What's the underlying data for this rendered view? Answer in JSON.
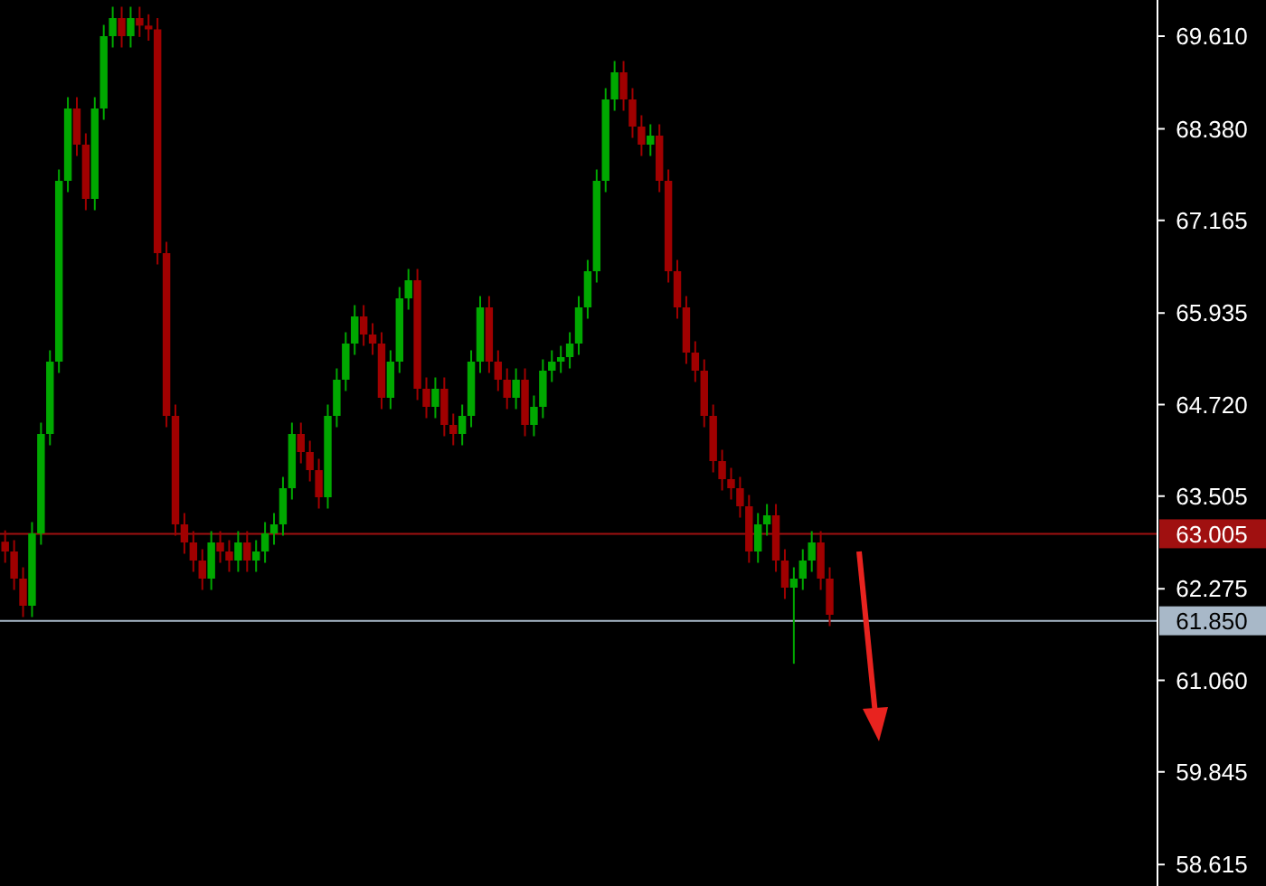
{
  "chart_data": {
    "type": "candlestick",
    "categories": [
      null,
      null,
      null,
      null,
      null,
      null,
      null,
      null,
      null,
      null,
      null,
      null,
      null,
      null,
      null,
      null,
      null,
      null,
      null,
      null,
      null,
      null,
      null,
      null,
      null,
      null,
      null,
      null,
      null,
      null,
      null,
      null,
      null,
      null,
      null,
      null,
      null,
      null,
      null,
      null,
      null,
      null,
      null,
      null,
      null,
      null,
      null,
      null,
      null,
      null,
      null,
      null,
      null,
      null,
      null,
      null,
      null,
      null,
      null,
      null,
      null,
      null,
      null,
      null,
      null,
      null,
      null,
      null,
      null,
      null,
      null,
      null,
      null,
      null,
      null,
      null,
      null,
      null,
      null,
      null,
      null,
      null,
      null,
      null,
      null,
      null,
      null,
      null,
      null,
      null,
      null,
      null,
      null,
      null,
      null,
      null,
      null,
      null,
      null,
      null,
      null,
      null,
      null,
      null,
      null,
      null,
      null,
      null,
      null,
      null,
      null,
      null,
      null,
      null,
      null,
      null,
      null,
      null,
      null,
      null,
      null,
      null,
      null,
      null,
      null,
      null,
      null,
      null,
      null
    ],
    "ohlc": [
      [
        62.9,
        63.05,
        62.62,
        62.77
      ],
      [
        62.77,
        62.92,
        62.26,
        62.41
      ],
      [
        62.41,
        62.56,
        61.9,
        62.05
      ],
      [
        62.05,
        63.16,
        61.9,
        63.01
      ],
      [
        63.01,
        64.48,
        62.86,
        64.33
      ],
      [
        64.33,
        65.44,
        64.18,
        65.29
      ],
      [
        65.29,
        67.84,
        65.14,
        67.69
      ],
      [
        67.69,
        68.8,
        67.54,
        68.65
      ],
      [
        68.65,
        68.8,
        68.02,
        68.17
      ],
      [
        68.17,
        68.32,
        67.3,
        67.45
      ],
      [
        67.45,
        68.8,
        67.3,
        68.65
      ],
      [
        68.65,
        69.76,
        68.5,
        69.61
      ],
      [
        69.61,
        70.0,
        69.46,
        69.85
      ],
      [
        69.85,
        70.0,
        69.46,
        69.61
      ],
      [
        69.61,
        70.0,
        69.46,
        69.85
      ],
      [
        69.85,
        70.0,
        69.6,
        69.75
      ],
      [
        69.75,
        69.9,
        69.55,
        69.7
      ],
      [
        69.7,
        69.85,
        66.58,
        66.73
      ],
      [
        66.73,
        66.88,
        64.42,
        64.57
      ],
      [
        64.57,
        64.72,
        62.98,
        63.13
      ],
      [
        63.13,
        63.28,
        62.74,
        62.89
      ],
      [
        62.89,
        63.04,
        62.5,
        62.65
      ],
      [
        62.65,
        62.8,
        62.26,
        62.41
      ],
      [
        62.41,
        63.04,
        62.26,
        62.89
      ],
      [
        62.89,
        63.04,
        62.62,
        62.77
      ],
      [
        62.77,
        62.92,
        62.5,
        62.65
      ],
      [
        62.65,
        63.04,
        62.5,
        62.89
      ],
      [
        62.89,
        63.04,
        62.5,
        62.65
      ],
      [
        62.65,
        62.92,
        62.5,
        62.77
      ],
      [
        62.77,
        63.16,
        62.62,
        63.01
      ],
      [
        63.01,
        63.28,
        62.86,
        63.13
      ],
      [
        63.13,
        63.76,
        62.98,
        63.61
      ],
      [
        63.61,
        64.48,
        63.46,
        64.33
      ],
      [
        64.33,
        64.48,
        63.94,
        64.09
      ],
      [
        64.09,
        64.24,
        63.7,
        63.85
      ],
      [
        63.85,
        64.0,
        63.34,
        63.49
      ],
      [
        63.49,
        64.72,
        63.34,
        64.57
      ],
      [
        64.57,
        65.2,
        64.42,
        65.05
      ],
      [
        65.05,
        65.68,
        64.9,
        65.53
      ],
      [
        65.53,
        66.04,
        65.38,
        65.89
      ],
      [
        65.89,
        66.04,
        65.5,
        65.65
      ],
      [
        65.65,
        65.8,
        65.38,
        65.53
      ],
      [
        65.53,
        65.68,
        64.66,
        64.81
      ],
      [
        64.81,
        65.44,
        64.66,
        65.29
      ],
      [
        65.29,
        66.28,
        65.14,
        66.13
      ],
      [
        66.13,
        66.52,
        65.98,
        66.37
      ],
      [
        66.37,
        66.52,
        64.78,
        64.93
      ],
      [
        64.93,
        65.08,
        64.54,
        64.69
      ],
      [
        64.69,
        65.08,
        64.54,
        64.93
      ],
      [
        64.93,
        65.08,
        64.3,
        64.45
      ],
      [
        64.45,
        64.6,
        64.18,
        64.33
      ],
      [
        64.33,
        64.72,
        64.18,
        64.57
      ],
      [
        64.57,
        65.44,
        64.42,
        65.29
      ],
      [
        65.29,
        66.16,
        65.14,
        66.01
      ],
      [
        66.01,
        66.16,
        65.14,
        65.29
      ],
      [
        65.29,
        65.44,
        64.9,
        65.05
      ],
      [
        65.05,
        65.2,
        64.66,
        64.81
      ],
      [
        64.81,
        65.2,
        64.66,
        65.05
      ],
      [
        65.05,
        65.2,
        64.3,
        64.45
      ],
      [
        64.45,
        64.84,
        64.3,
        64.69
      ],
      [
        64.69,
        65.32,
        64.54,
        65.17
      ],
      [
        65.17,
        65.44,
        65.02,
        65.29
      ],
      [
        65.29,
        65.5,
        65.14,
        65.35
      ],
      [
        65.35,
        65.68,
        65.2,
        65.53
      ],
      [
        65.53,
        66.16,
        65.38,
        66.01
      ],
      [
        66.01,
        66.64,
        65.86,
        66.49
      ],
      [
        66.49,
        67.84,
        66.34,
        67.69
      ],
      [
        67.69,
        68.92,
        67.54,
        68.77
      ],
      [
        68.77,
        69.28,
        68.62,
        69.13
      ],
      [
        69.13,
        69.28,
        68.62,
        68.77
      ],
      [
        68.77,
        68.92,
        68.26,
        68.41
      ],
      [
        68.41,
        68.56,
        68.02,
        68.17
      ],
      [
        68.17,
        68.44,
        68.02,
        68.29
      ],
      [
        68.29,
        68.44,
        67.54,
        67.69
      ],
      [
        67.69,
        67.84,
        66.34,
        66.49
      ],
      [
        66.49,
        66.64,
        65.86,
        66.01
      ],
      [
        66.01,
        66.16,
        65.26,
        65.41
      ],
      [
        65.41,
        65.56,
        65.02,
        65.17
      ],
      [
        65.17,
        65.32,
        64.42,
        64.57
      ],
      [
        64.57,
        64.72,
        63.82,
        63.97
      ],
      [
        63.97,
        64.12,
        63.58,
        63.73
      ],
      [
        63.73,
        63.88,
        63.46,
        63.61
      ],
      [
        63.61,
        63.76,
        63.22,
        63.37
      ],
      [
        63.37,
        63.52,
        62.62,
        62.77
      ],
      [
        62.77,
        63.28,
        62.62,
        63.13
      ],
      [
        63.13,
        63.4,
        62.98,
        63.25
      ],
      [
        63.25,
        63.4,
        62.5,
        62.65
      ],
      [
        62.65,
        62.8,
        62.14,
        62.29
      ],
      [
        62.29,
        62.56,
        61.28,
        62.41
      ],
      [
        62.41,
        62.8,
        62.26,
        62.65
      ],
      [
        62.65,
        63.04,
        62.5,
        62.89
      ],
      [
        62.89,
        63.04,
        62.26,
        62.41
      ],
      [
        62.41,
        62.56,
        61.78,
        61.93
      ],
      null,
      null,
      null,
      null,
      null,
      null,
      null,
      null,
      null,
      null,
      null,
      null,
      null,
      null,
      null,
      null,
      null,
      null,
      null,
      null,
      null,
      null,
      null,
      null,
      null,
      null,
      null,
      null,
      null,
      null,
      null,
      null,
      null,
      null,
      null,
      null
    ],
    "colors": [
      "#a00000",
      "#a00000",
      "#a00000",
      "#00a800",
      "#00a800",
      "#00a800",
      "#00a800",
      "#00a800",
      "#a00000",
      "#a00000",
      "#00a800",
      "#00a800",
      "#00a800",
      "#a00000",
      "#00a800",
      "#a00000",
      "#a00000",
      "#a00000",
      "#a00000",
      "#a00000",
      "#a00000",
      "#a00000",
      "#a00000",
      "#00a800",
      "#a00000",
      "#a00000",
      "#00a800",
      "#a00000",
      "#00a800",
      "#00a800",
      "#00a800",
      "#00a800",
      "#00a800",
      "#a00000",
      "#a00000",
      "#a00000",
      "#00a800",
      "#00a800",
      "#00a800",
      "#00a800",
      "#a00000",
      "#a00000",
      "#a00000",
      "#00a800",
      "#00a800",
      "#00a800",
      "#a00000",
      "#a00000",
      "#00a800",
      "#a00000",
      "#a00000",
      "#00a800",
      "#00a800",
      "#00a800",
      "#a00000",
      "#a00000",
      "#a00000",
      "#00a800",
      "#a00000",
      "#00a800",
      "#00a800",
      "#00a800",
      "#00a800",
      "#00a800",
      "#00a800",
      "#00a800",
      "#00a800",
      "#00a800",
      "#00a800",
      "#a00000",
      "#a00000",
      "#a00000",
      "#00a800",
      "#a00000",
      "#a00000",
      "#a00000",
      "#a00000",
      "#a00000",
      "#a00000",
      "#a00000",
      "#a00000",
      "#a00000",
      "#a00000",
      "#a00000",
      "#00a800",
      "#00a800",
      "#a00000",
      "#a00000",
      "#00a800",
      "#00a800",
      "#00a800",
      "#a00000",
      "#a00000",
      null,
      null,
      null,
      null,
      null,
      null,
      null,
      null,
      null,
      null,
      null,
      null,
      null,
      null,
      null,
      null,
      null,
      null,
      null,
      null,
      null,
      null,
      null,
      null,
      null,
      null,
      null,
      null,
      null,
      null,
      null,
      null,
      null,
      null,
      null,
      null
    ],
    "ylim": [
      58.33,
      70.09
    ],
    "yticks": [
      {
        "value": 69.61,
        "label": "69.610"
      },
      {
        "value": 68.38,
        "label": "68.380"
      },
      {
        "value": 67.165,
        "label": "67.165"
      },
      {
        "value": 65.935,
        "label": "65.935"
      },
      {
        "value": 64.72,
        "label": "64.720"
      },
      {
        "value": 63.505,
        "label": "63.505"
      },
      {
        "value": 62.275,
        "label": "62.275"
      },
      {
        "value": 61.06,
        "label": "61.060"
      },
      {
        "value": 59.845,
        "label": "59.845"
      },
      {
        "value": 58.615,
        "label": "58.615"
      }
    ],
    "ref_lines": [
      {
        "axis": "y",
        "value": 63.005,
        "label": "63.005",
        "color": "#a01010"
      },
      {
        "axis": "y",
        "value": 61.85,
        "label": "61.850",
        "color": "#a8b8c8"
      }
    ]
  }
}
